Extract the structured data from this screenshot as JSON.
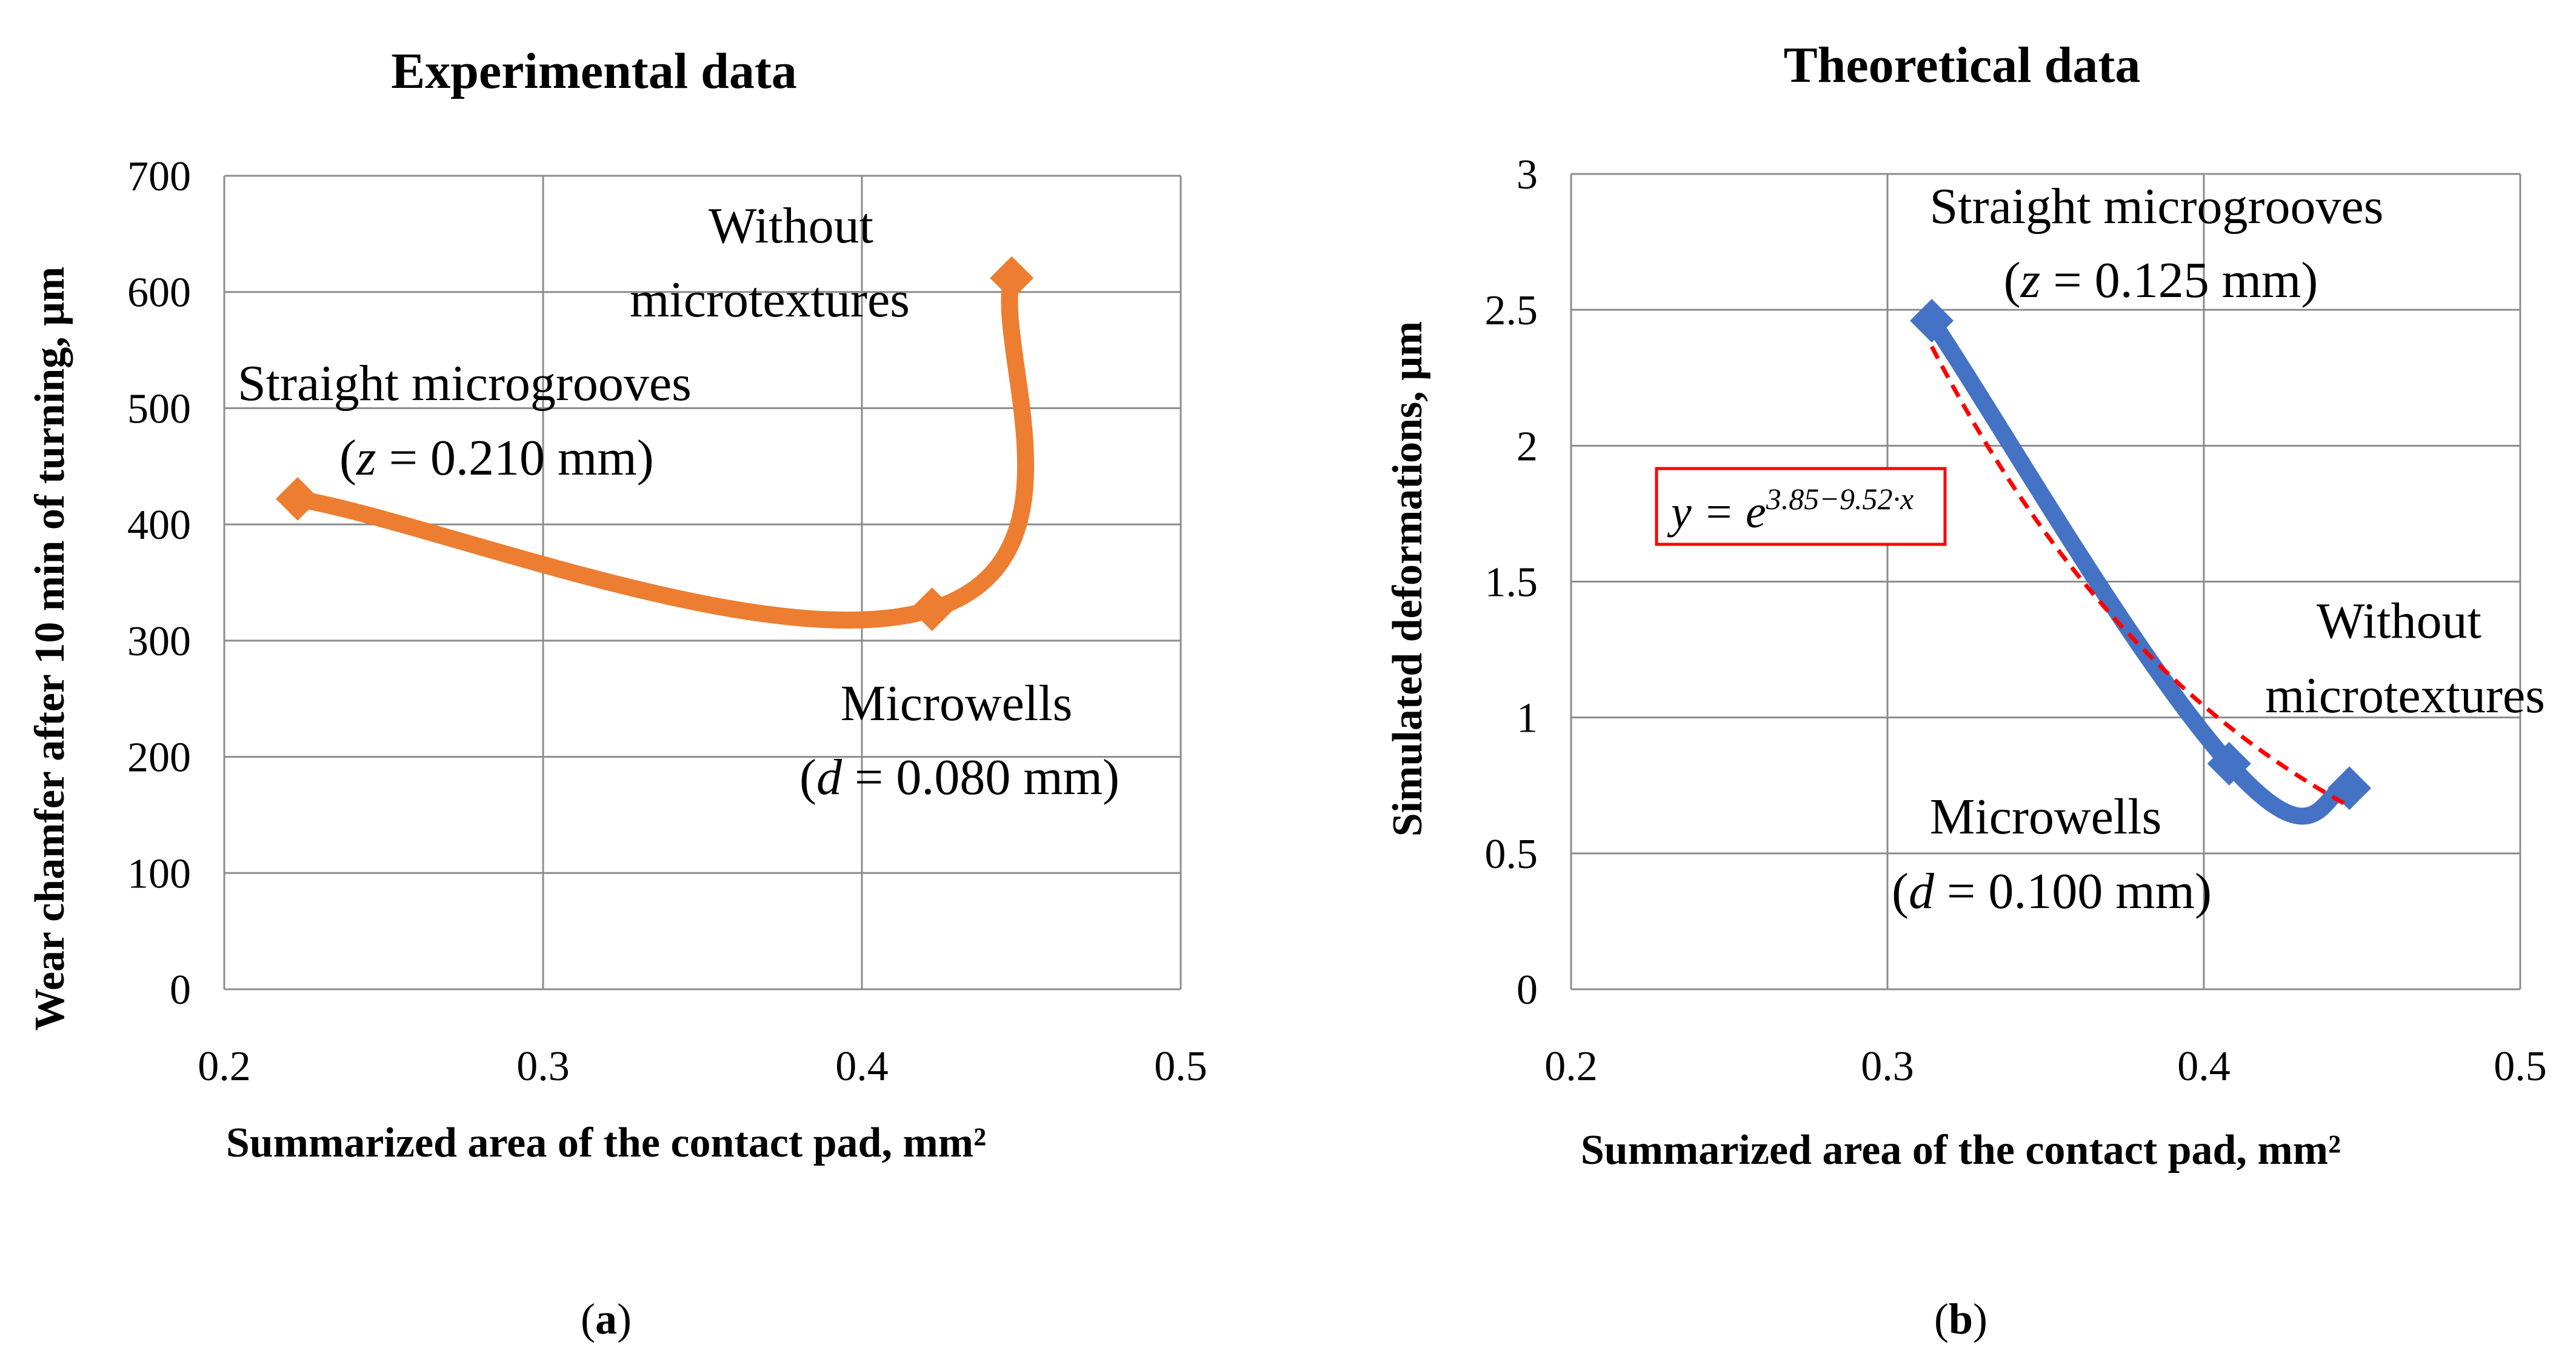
{
  "chart_data": [
    {
      "type": "line",
      "title": "Experimental data",
      "xlabel": "Summarized area of the contact pad, mm²",
      "ylabel": "Wear chamfer after 10 min of turning, μm",
      "xlim": [
        0.2,
        0.5
      ],
      "ylim": [
        0,
        700
      ],
      "xticks": [
        "0.2",
        "0.3",
        "0.4",
        "0.5"
      ],
      "yticks": [
        "0",
        "100",
        "200",
        "300",
        "400",
        "500",
        "600",
        "700"
      ],
      "grid": true,
      "series": [
        {
          "color": "#ED7D31",
          "marker": "diamond",
          "smooth": true,
          "points": [
            {
              "x": 0.223,
              "y": 422
            },
            {
              "x": 0.422,
              "y": 327
            },
            {
              "x": 0.447,
              "y": 612
            }
          ]
        }
      ],
      "annotations": [
        {
          "lines": [
            [
              "Without"
            ],
            [
              "microtextures"
            ]
          ]
        },
        {
          "lines": [
            [
              "Straight microgrooves"
            ],
            [
              "(",
              {
                "i": "z"
              },
              " = 0.210 mm)"
            ]
          ]
        },
        {
          "lines": [
            [
              "Microwells"
            ],
            [
              "(",
              {
                "i": "d"
              },
              " = 0.080 mm)"
            ]
          ]
        }
      ],
      "panel_label": [
        "(",
        "a",
        ")"
      ]
    },
    {
      "type": "line",
      "title": "Theoretical data",
      "xlabel": "Summarized area of the contact pad, mm²",
      "ylabel": "Simulated deformations, μm",
      "xlim": [
        0.2,
        0.5
      ],
      "ylim": [
        0,
        3
      ],
      "xticks": [
        "0.2",
        "0.3",
        "0.4",
        "0.5"
      ],
      "yticks": [
        "0",
        "0.5",
        "1",
        "1.5",
        "2",
        "2.5",
        "3"
      ],
      "grid": true,
      "series": [
        {
          "color": "#4472C4",
          "marker": "diamond",
          "smooth": true,
          "points": [
            {
              "x": 0.314,
              "y": 2.46
            },
            {
              "x": 0.408,
              "y": 0.83
            },
            {
              "x": 0.446,
              "y": 0.74
            }
          ]
        }
      ],
      "trendline": {
        "type": "exponential",
        "a": 3.85,
        "b": 9.52,
        "x_range": [
          0.314,
          0.446
        ],
        "color": "#FF0000",
        "dashed": true,
        "equation_base": "y = e",
        "equation_exp": "3.85−9.52·x"
      },
      "annotations": [
        {
          "lines": [
            [
              "Straight microgrooves"
            ],
            [
              "(",
              {
                "i": "z"
              },
              " = 0.125 mm)"
            ]
          ]
        },
        {
          "lines": [
            [
              "Without"
            ],
            [
              "microtextures"
            ]
          ]
        },
        {
          "lines": [
            [
              "Microwells"
            ],
            [
              "(",
              {
                "i": "d"
              },
              " = 0.100 mm)"
            ]
          ]
        }
      ],
      "panel_label": [
        "(",
        "b",
        ")"
      ]
    }
  ]
}
